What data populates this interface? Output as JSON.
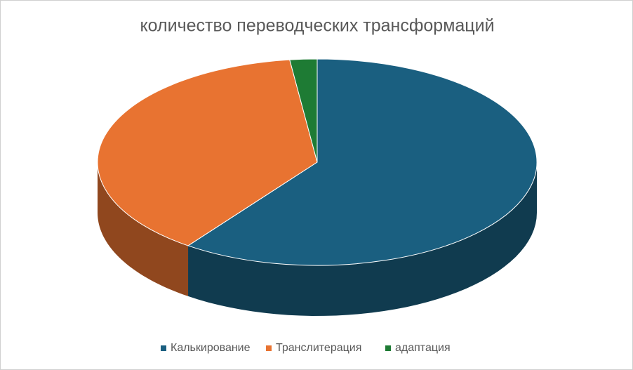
{
  "chart_data": {
    "type": "pie3d",
    "title": "количество переводческих трансформаций",
    "series": [
      {
        "name": "Калькирование",
        "color": "#1a5f80",
        "values": [
          60
        ]
      },
      {
        "name": "Транслитерация",
        "color": "#e87331",
        "values": [
          38
        ]
      },
      {
        "name": "адаптация",
        "color": "#1e7b34",
        "values": [
          2
        ]
      }
    ],
    "legend": "bottom"
  }
}
